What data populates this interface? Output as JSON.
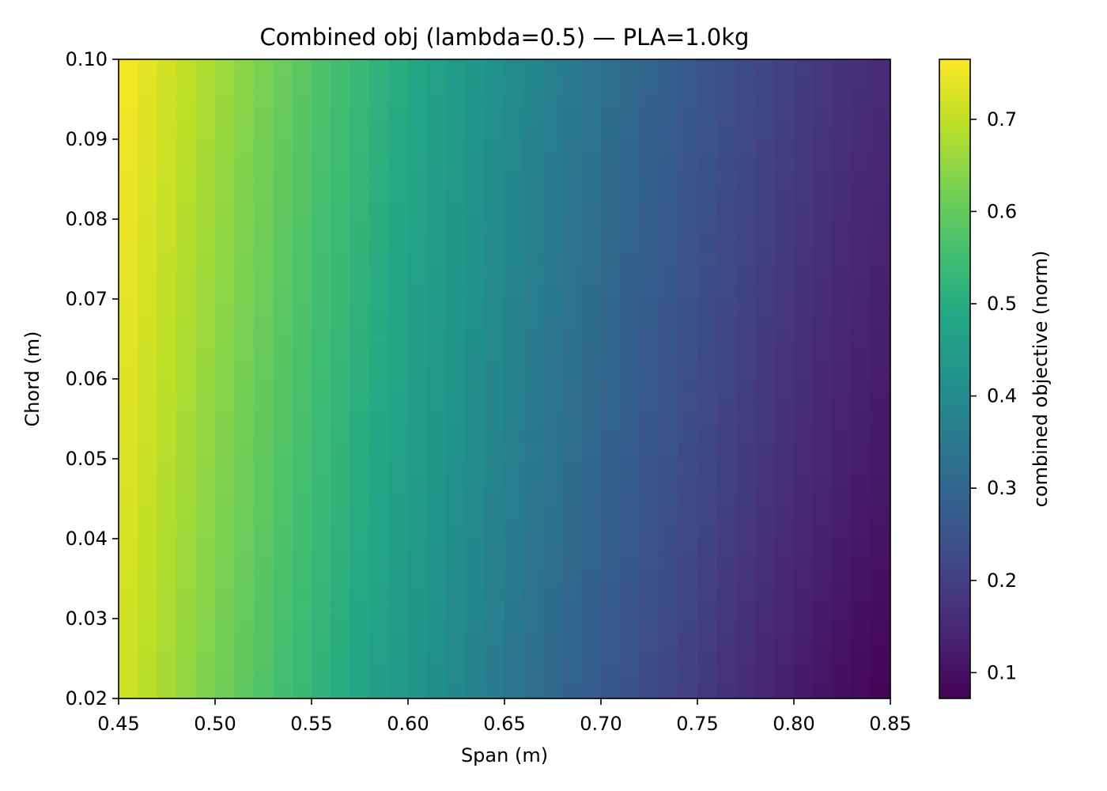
{
  "chart_data": {
    "type": "heatmap",
    "title": "Combined obj (lambda=0.5) — PLA=1.0kg",
    "xlabel": "Span (m)",
    "ylabel": "Chord (m)",
    "colorbar_label": "combined objective (norm)",
    "colormap": "viridis",
    "xlim": [
      0.45,
      0.85
    ],
    "ylim": [
      0.02,
      0.1
    ],
    "x_ticks": [
      "0.45",
      "0.50",
      "0.55",
      "0.60",
      "0.65",
      "0.70",
      "0.75",
      "0.80",
      "0.85"
    ],
    "y_ticks": [
      "0.02",
      "0.03",
      "0.04",
      "0.05",
      "0.06",
      "0.07",
      "0.08",
      "0.09",
      "0.10"
    ],
    "colorbar_range": [
      0.072,
      0.765
    ],
    "colorbar_ticks": [
      "0.1",
      "0.2",
      "0.3",
      "0.4",
      "0.5",
      "0.6",
      "0.7"
    ],
    "grid": false,
    "x_cells": 40,
    "y_cells": 40,
    "value_model": {
      "description_values": "value(span, chord)",
      "at_span_0.45_chord_0.10": 0.765,
      "at_span_0.45_chord_0.02": 0.7,
      "at_span_0.65_chord_0.06": 0.3,
      "at_span_0.85_chord_0.10": 0.18,
      "at_span_0.85_chord_0.04": 0.072,
      "at_span_0.85_chord_0.02": 0.08
    }
  }
}
